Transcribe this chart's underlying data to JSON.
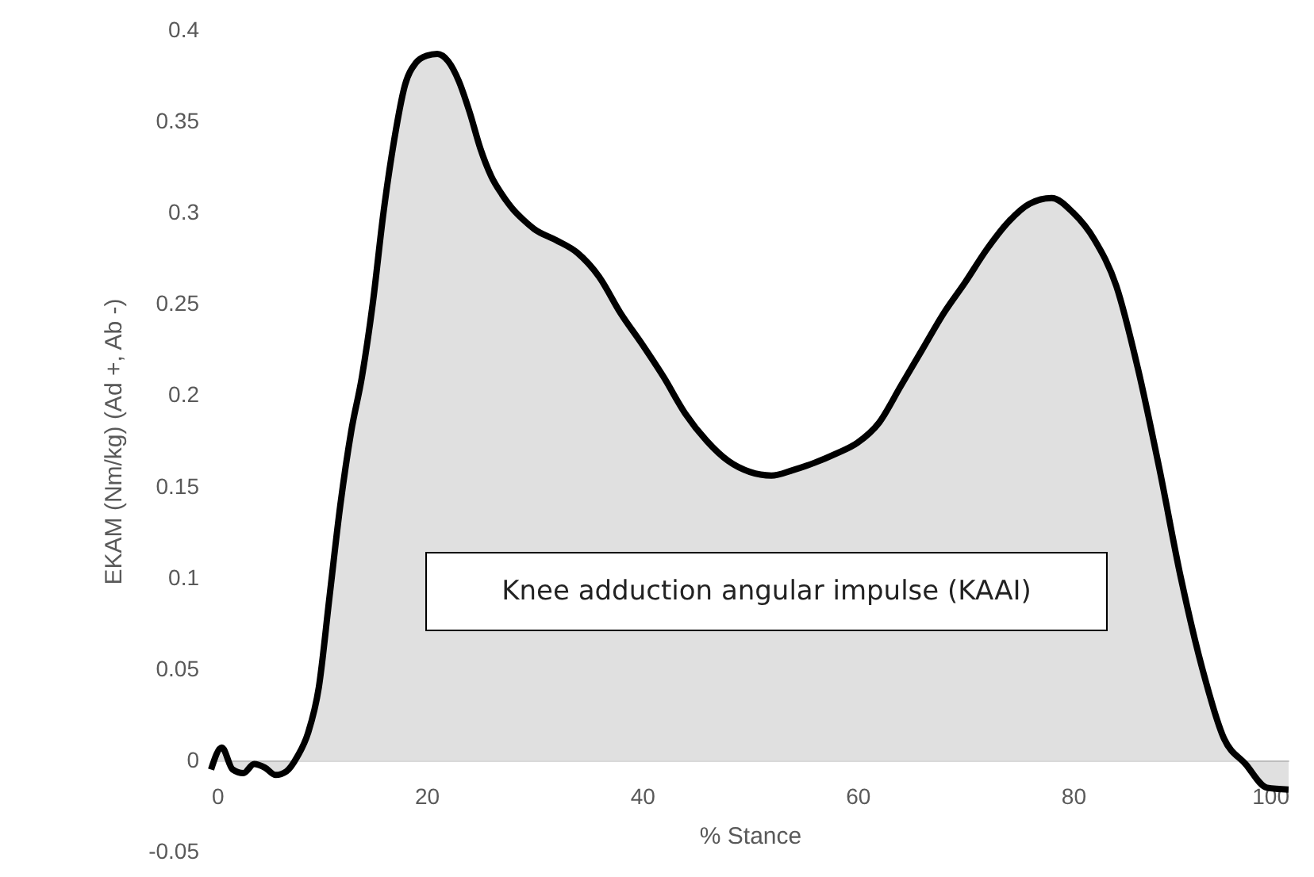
{
  "chart_data": {
    "type": "area",
    "xlabel": "% Stance",
    "ylabel": "EKAM (Nm/kg) (Ad +, Ab -)",
    "annotations": [
      "Knee adduction angular impulse (KAAI)"
    ],
    "xlim": [
      0,
      100
    ],
    "xticks": [
      0,
      20,
      40,
      60,
      80,
      100
    ],
    "ylim": [
      -0.05,
      0.4
    ],
    "yticks": [
      -0.05,
      0,
      0.05,
      0.1,
      0.15,
      0.2,
      0.25,
      0.3,
      0.35,
      0.4
    ],
    "grid": false,
    "series": [
      {
        "color": "#000000",
        "x": [
          0,
          1,
          2,
          3,
          4,
          5,
          6,
          7,
          8,
          9,
          10,
          11,
          12,
          13,
          14,
          15,
          16,
          17,
          18,
          19,
          20,
          21,
          22,
          23,
          24,
          25,
          26,
          27,
          28,
          29,
          30,
          32,
          34,
          36,
          38,
          40,
          42,
          44,
          46,
          48,
          50,
          52,
          54,
          56,
          58,
          60,
          62,
          64,
          66,
          68,
          70,
          72,
          74,
          76,
          78,
          80,
          82,
          84,
          86,
          88,
          90,
          92,
          94,
          96,
          98,
          100
        ],
        "values": [
          -0.005,
          0.007,
          -0.005,
          -0.007,
          -0.002,
          -0.004,
          -0.008,
          -0.006,
          0.002,
          0.015,
          0.04,
          0.09,
          0.14,
          0.18,
          0.21,
          0.25,
          0.3,
          0.34,
          0.37,
          0.382,
          0.386,
          0.387,
          0.383,
          0.372,
          0.355,
          0.335,
          0.32,
          0.31,
          0.302,
          0.296,
          0.291,
          0.285,
          0.278,
          0.265,
          0.245,
          0.228,
          0.21,
          0.19,
          0.175,
          0.164,
          0.158,
          0.156,
          0.159,
          0.163,
          0.168,
          0.174,
          0.185,
          0.205,
          0.225,
          0.245,
          0.262,
          0.28,
          0.295,
          0.305,
          0.308,
          0.3,
          0.285,
          0.26,
          0.215,
          0.16,
          0.1,
          0.05,
          0.012,
          -0.002,
          -0.015,
          -0.016
        ]
      }
    ]
  }
}
